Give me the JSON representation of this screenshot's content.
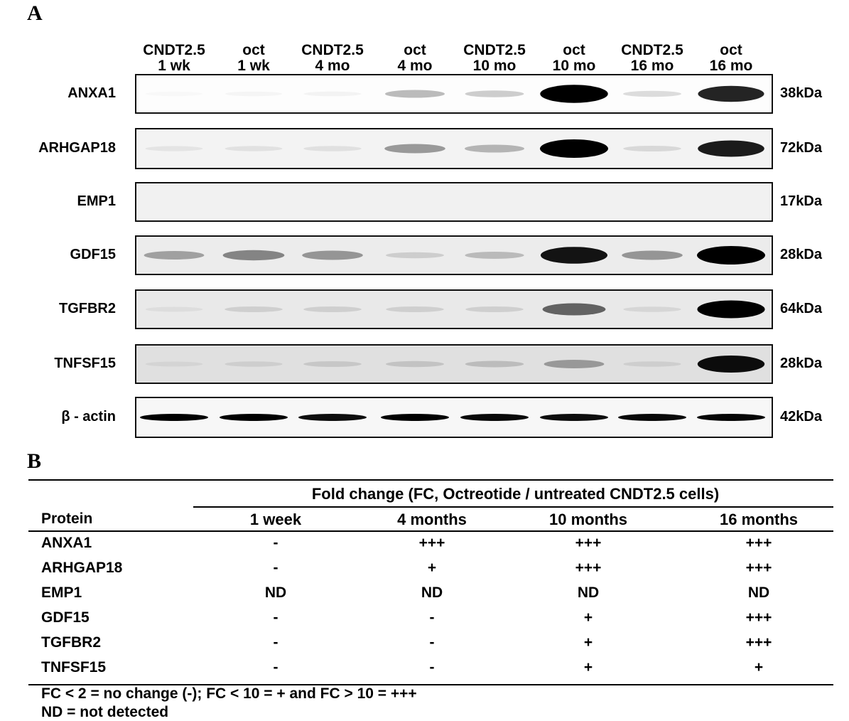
{
  "panel_a": {
    "label": "A",
    "lanes": [
      {
        "line1": "CNDT2.5",
        "line2": "1 wk"
      },
      {
        "line1": "oct",
        "line2": "1 wk"
      },
      {
        "line1": "CNDT2.5",
        "line2": "4 mo"
      },
      {
        "line1": "oct",
        "line2": "4 mo"
      },
      {
        "line1": "CNDT2.5",
        "line2": "10 mo"
      },
      {
        "line1": "oct",
        "line2": "10 mo"
      },
      {
        "line1": "CNDT2.5",
        "line2": "16 mo"
      },
      {
        "line1": "oct",
        "line2": "16 mo"
      }
    ],
    "blots": [
      {
        "protein": "ANXA1",
        "mw": "38kDa",
        "background": "#fdfdfd",
        "intensities": [
          0.02,
          0.03,
          0.04,
          0.25,
          0.18,
          0.97,
          0.12,
          0.82
        ]
      },
      {
        "protein": "ARHGAP18",
        "mw": "72kDa",
        "background": "#f3f3f3",
        "intensities": [
          0.06,
          0.07,
          0.08,
          0.35,
          0.25,
          1.0,
          0.1,
          0.85
        ]
      },
      {
        "protein": "EMP1",
        "mw": "17kDa",
        "background": "#f1f1f1",
        "intensities": [
          0,
          0,
          0,
          0,
          0,
          0,
          0,
          0
        ]
      },
      {
        "protein": "GDF15",
        "mw": "28kDa",
        "background": "#ececec",
        "intensities": [
          0.3,
          0.42,
          0.35,
          0.12,
          0.2,
          0.88,
          0.35,
          1.0
        ]
      },
      {
        "protein": "TGFBR2",
        "mw": "64kDa",
        "background": "#e9e9e9",
        "intensities": [
          0.05,
          0.1,
          0.1,
          0.1,
          0.1,
          0.55,
          0.08,
          0.95
        ]
      },
      {
        "protein": "TNFSF15",
        "mw": "28kDa",
        "background": "#e0e0e0",
        "intensities": [
          0.05,
          0.08,
          0.1,
          0.12,
          0.15,
          0.3,
          0.08,
          0.9
        ]
      },
      {
        "protein": "β - actin",
        "mw": "42kDa",
        "background": "#f7f7f7",
        "intensities": [
          0.95,
          0.95,
          0.9,
          0.97,
          0.92,
          0.9,
          0.92,
          0.93
        ]
      }
    ]
  },
  "panel_b": {
    "label": "B",
    "header": "Fold change (FC, Octreotide / untreated CNDT2.5 cells)",
    "protein_col": "Protein",
    "columns": [
      "1 week",
      "4 months",
      "10 months",
      "16 months"
    ],
    "rows": [
      {
        "protein": "ANXA1",
        "values": [
          "-",
          "+++",
          "+++",
          "+++"
        ]
      },
      {
        "protein": "ARHGAP18",
        "values": [
          "-",
          "+",
          "+++",
          "+++"
        ]
      },
      {
        "protein": "EMP1",
        "values": [
          "ND",
          "ND",
          "ND",
          "ND"
        ]
      },
      {
        "protein": "GDF15",
        "values": [
          "-",
          "-",
          "+",
          "+++"
        ]
      },
      {
        "protein": "TGFBR2",
        "values": [
          "-",
          "-",
          "+",
          "+++"
        ]
      },
      {
        "protein": "TNFSF15",
        "values": [
          "-",
          "-",
          "+",
          "+"
        ]
      }
    ],
    "footnote1": "FC < 2 = no change (-); FC < 10 = + and FC > 10 = +++",
    "footnote2": "ND = not detected"
  }
}
